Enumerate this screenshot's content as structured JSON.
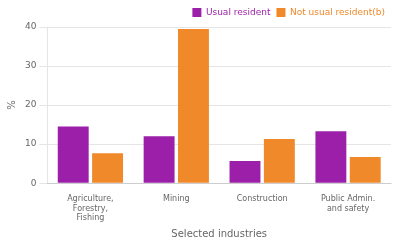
{
  "chart_data": {
    "type": "bar",
    "categories": [
      "Agriculture,\nForestry,\nFishing",
      "Mining",
      "Construction",
      "Public Admin.\nand safety"
    ],
    "series": [
      {
        "name": "Usual resident",
        "color": "#9B1FA8",
        "values": [
          14.5,
          12.0,
          5.7,
          13.3
        ]
      },
      {
        "name": "Not usual resident(b)",
        "color": "#F0892A",
        "values": [
          7.7,
          39.5,
          11.3,
          6.7
        ]
      }
    ],
    "xlabel": "Selected industries",
    "ylabel": "%",
    "ylim": [
      0,
      40
    ],
    "yticks": [
      0,
      10,
      20,
      30,
      40
    ],
    "grid": true,
    "legend": "upper right"
  }
}
